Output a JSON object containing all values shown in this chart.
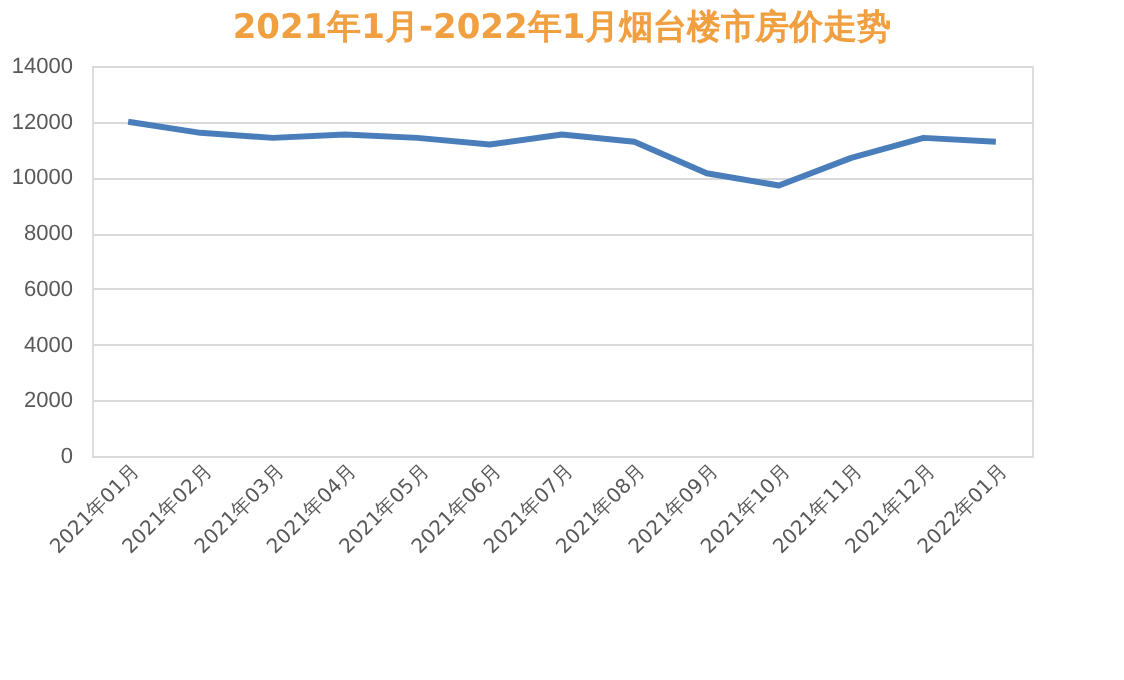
{
  "chart_data": {
    "type": "line",
    "title": "2021年1月-2022年1月烟台楼市房价走势",
    "categories": [
      "2021年01月",
      "2021年02月",
      "2021年03月",
      "2021年04月",
      "2021年05月",
      "2021年06月",
      "2021年07月",
      "2021年08月",
      "2021年09月",
      "2021年10月",
      "2021年11月",
      "2021年12月",
      "2022年01月"
    ],
    "series": [
      {
        "color": "#4a7ebb",
        "values": [
          12000,
          11600,
          11420,
          11540,
          11420,
          11180,
          11540,
          11280,
          10150,
          9710,
          10700,
          11420,
          11280
        ]
      }
    ],
    "ylim": [
      0,
      14000
    ],
    "yticks": [
      0,
      2000,
      4000,
      6000,
      8000,
      10000,
      12000,
      14000
    ],
    "grid": "y",
    "legend": false,
    "marker": "none",
    "line_style": "solid"
  }
}
